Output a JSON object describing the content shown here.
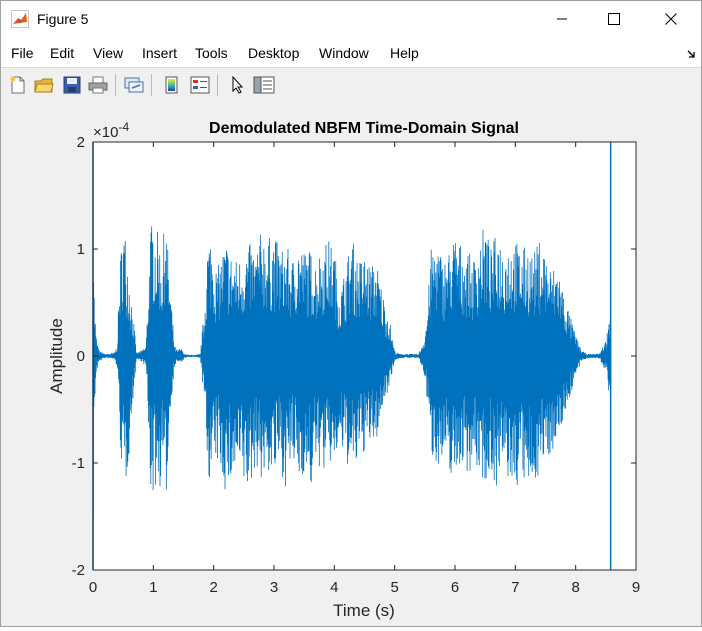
{
  "window": {
    "title": "Figure 5",
    "icon": "matlab-figure-icon"
  },
  "menu": {
    "items": [
      "File",
      "Edit",
      "View",
      "Insert",
      "Tools",
      "Desktop",
      "Window",
      "Help"
    ]
  },
  "toolbar": {
    "buttons": [
      "new-figure-icon",
      "open-file-icon",
      "save-icon",
      "print-icon",
      "link-plot-icon",
      "insert-colorbar-icon",
      "insert-legend-icon",
      "edit-plot-pointer-icon",
      "property-inspector-icon"
    ]
  },
  "chart_data": {
    "type": "line",
    "title": "Demodulated NBFM Time-Domain Signal",
    "xlabel": "Time (s)",
    "ylabel": "Amplitude",
    "exponent_label": "×10",
    "exponent_power": "-4",
    "xlim": [
      0,
      9
    ],
    "ylim": [
      -2,
      2
    ],
    "x_ticks": [
      "0",
      "1",
      "2",
      "3",
      "4",
      "5",
      "6",
      "7",
      "8",
      "9"
    ],
    "y_ticks": [
      "2",
      "1",
      "0",
      "-1",
      "-2"
    ],
    "line_color": "#0072BD",
    "grid": false,
    "signal_end": 8.58,
    "envelope": {
      "t": [
        0.0,
        0.02,
        0.05,
        0.1,
        0.2,
        0.35,
        0.4,
        0.45,
        0.5,
        0.55,
        0.6,
        0.65,
        0.72,
        0.8,
        0.88,
        0.95,
        1.0,
        1.05,
        1.1,
        1.15,
        1.2,
        1.25,
        1.3,
        1.35,
        1.4,
        1.45,
        1.52,
        1.6,
        1.7,
        1.78,
        1.85,
        1.9,
        1.95,
        2.0,
        2.05,
        2.1,
        2.2,
        2.3,
        2.4,
        2.5,
        2.6,
        2.7,
        2.8,
        2.9,
        3.0,
        3.1,
        3.2,
        3.3,
        3.4,
        3.5,
        3.6,
        3.7,
        3.8,
        3.9,
        4.0,
        4.1,
        4.2,
        4.3,
        4.4,
        4.5,
        4.6,
        4.7,
        4.8,
        4.9,
        5.0,
        5.05,
        5.1,
        5.2,
        5.3,
        5.4,
        5.5,
        5.55,
        5.6,
        5.7,
        5.8,
        5.9,
        6.0,
        6.1,
        6.2,
        6.3,
        6.4,
        6.5,
        6.6,
        6.7,
        6.8,
        6.9,
        7.0,
        7.1,
        7.2,
        7.3,
        7.4,
        7.5,
        7.6,
        7.7,
        7.8,
        7.9,
        8.0,
        8.1,
        8.2,
        8.3,
        8.4,
        8.5,
        8.55
      ],
      "upper": [
        1.9,
        0.6,
        0.2,
        0.05,
        0.02,
        0.03,
        0.1,
        0.9,
        1.3,
        1.1,
        0.8,
        0.5,
        0.03,
        0.05,
        0.1,
        1.2,
        1.3,
        1.2,
        1.1,
        0.9,
        1.45,
        0.9,
        0.5,
        0.1,
        0.05,
        0.08,
        0.02,
        0.01,
        0.01,
        0.02,
        0.5,
        1.1,
        1.15,
        1.0,
        0.8,
        0.9,
        1.1,
        0.95,
        0.9,
        1.0,
        1.05,
        1.0,
        1.2,
        1.1,
        1.15,
        1.0,
        1.05,
        0.9,
        1.1,
        1.0,
        1.0,
        0.9,
        1.05,
        1.1,
        1.0,
        0.6,
        0.9,
        1.1,
        0.9,
        0.95,
        0.85,
        0.9,
        0.6,
        0.4,
        0.05,
        0.03,
        0.02,
        0.02,
        0.02,
        0.02,
        0.2,
        0.5,
        1.0,
        1.1,
        0.9,
        1.0,
        1.15,
        1.05,
        1.0,
        0.9,
        1.1,
        1.25,
        1.0,
        1.2,
        1.05,
        1.1,
        1.1,
        1.0,
        1.05,
        0.95,
        1.1,
        1.0,
        0.8,
        0.9,
        0.6,
        0.4,
        0.2,
        0.05,
        0.02,
        0.02,
        0.03,
        0.15,
        0.35
      ],
      "lower": [
        -1.9,
        -0.6,
        -0.2,
        -0.05,
        -0.02,
        -0.03,
        -0.1,
        -0.8,
        -1.3,
        -1.2,
        -0.9,
        -0.5,
        -0.03,
        -0.05,
        -0.1,
        -1.25,
        -1.35,
        -1.2,
        -1.3,
        -1.0,
        -1.5,
        -0.9,
        -0.4,
        -0.1,
        -0.05,
        -0.08,
        -0.02,
        -0.01,
        -0.01,
        -0.02,
        -0.5,
        -1.1,
        -1.2,
        -1.05,
        -1.0,
        -1.05,
        -1.3,
        -1.2,
        -1.1,
        -1.25,
        -1.3,
        -1.0,
        -1.2,
        -1.1,
        -1.15,
        -1.05,
        -1.25,
        -1.0,
        -1.2,
        -1.1,
        -1.3,
        -1.0,
        -1.1,
        -1.05,
        -1.0,
        -0.9,
        -1.0,
        -1.15,
        -1.0,
        -0.9,
        -0.85,
        -0.8,
        -0.5,
        -0.3,
        -0.05,
        -0.03,
        -0.02,
        -0.02,
        -0.02,
        -0.02,
        -0.2,
        -0.5,
        -0.95,
        -1.0,
        -1.05,
        -1.1,
        -1.15,
        -1.0,
        -1.1,
        -1.05,
        -1.1,
        -1.2,
        -1.1,
        -1.25,
        -1.1,
        -1.2,
        -1.3,
        -1.1,
        -1.35,
        -1.2,
        -1.1,
        -1.0,
        -0.9,
        -0.8,
        -0.6,
        -0.4,
        -0.2,
        -0.05,
        -0.02,
        -0.02,
        -0.03,
        -0.15,
        -0.35
      ]
    }
  }
}
